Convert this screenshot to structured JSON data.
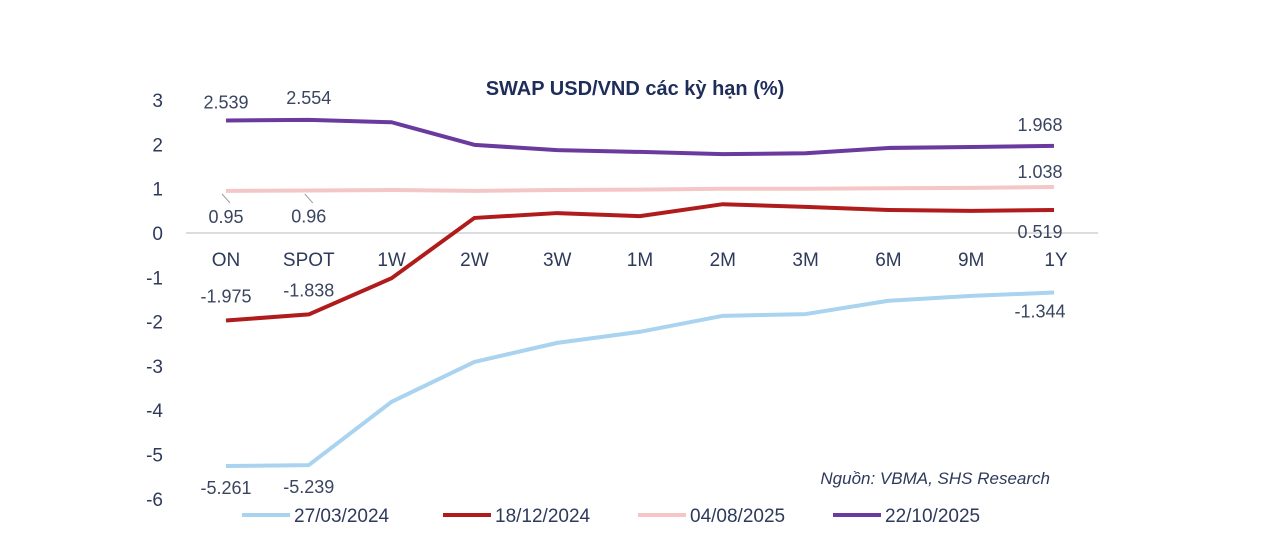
{
  "chart_data": {
    "type": "line",
    "title": "SWAP USD/VND các kỳ hạn (%)",
    "source": "Nguồn: VBMA, SHS Research",
    "xlabel": "",
    "ylabel": "",
    "ylim": [
      -6,
      3
    ],
    "yticks": [
      "-6",
      "-5",
      "-4",
      "-3",
      "-2",
      "-1",
      "0",
      "1",
      "2",
      "3"
    ],
    "categories": [
      "ON",
      "SPOT",
      "1W",
      "2W",
      "3W",
      "1M",
      "2M",
      "3M",
      "6M",
      "9M",
      "1Y"
    ],
    "legend_position": "bottom",
    "series": [
      {
        "name": "27/03/2024",
        "color": "#a9d3ee",
        "values": [
          -5.261,
          -5.239,
          -3.81,
          -2.91,
          -2.48,
          -2.23,
          -1.87,
          -1.83,
          -1.53,
          -1.42,
          -1.344
        ],
        "labels": [
          {
            "i": 0,
            "text": "-5.261"
          },
          {
            "i": 1,
            "text": "-5.239"
          },
          {
            "i": 10,
            "text": "-1.344"
          }
        ]
      },
      {
        "name": "18/12/2024",
        "color": "#b01c1c",
        "values": [
          -1.975,
          -1.838,
          -1.02,
          0.34,
          0.45,
          0.38,
          0.65,
          0.59,
          0.52,
          0.5,
          0.519
        ],
        "labels": [
          {
            "i": 0,
            "text": "-1.975"
          },
          {
            "i": 1,
            "text": "-1.838"
          },
          {
            "i": 10,
            "text": "0.519"
          }
        ]
      },
      {
        "name": "04/08/2025",
        "color": "#f5c6c6",
        "values": [
          0.95,
          0.96,
          0.97,
          0.95,
          0.97,
          0.98,
          1.0,
          1.0,
          1.01,
          1.02,
          1.038
        ],
        "labels": [
          {
            "i": 0,
            "text": "0.95"
          },
          {
            "i": 1,
            "text": "0.96"
          },
          {
            "i": 10,
            "text": "1.038"
          }
        ]
      },
      {
        "name": "22/10/2025",
        "color": "#6b3a9e",
        "values": [
          2.539,
          2.554,
          2.5,
          1.99,
          1.87,
          1.83,
          1.78,
          1.8,
          1.92,
          1.94,
          1.968
        ],
        "labels": [
          {
            "i": 0,
            "text": "2.539"
          },
          {
            "i": 1,
            "text": "2.554"
          },
          {
            "i": 10,
            "text": "1.968"
          }
        ]
      }
    ]
  }
}
